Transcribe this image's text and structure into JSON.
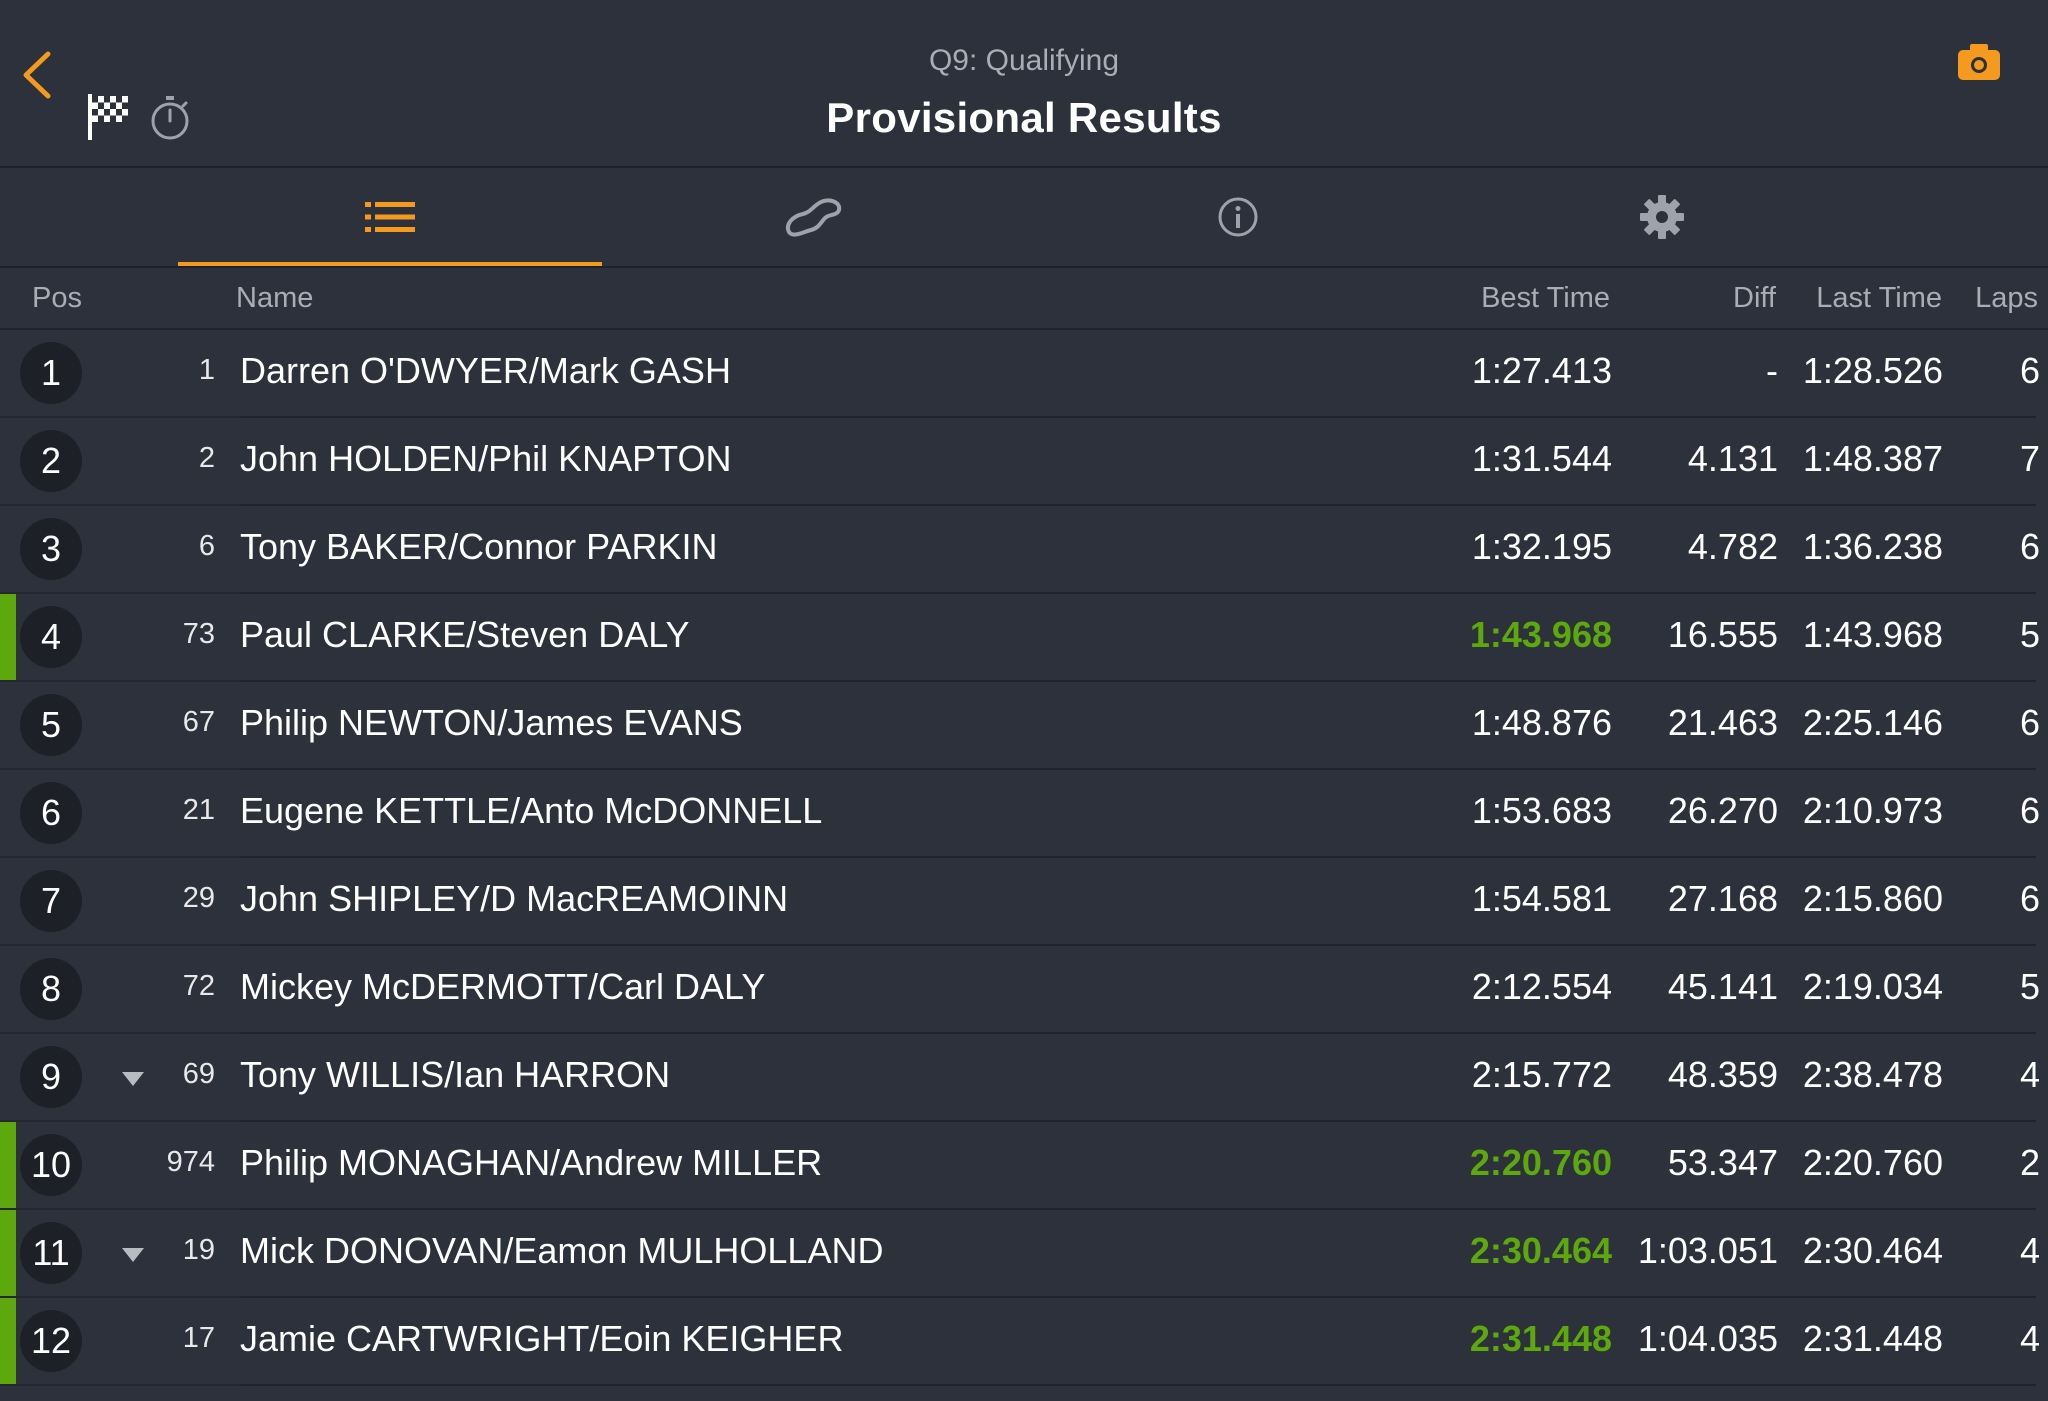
{
  "header": {
    "subtitle": "Q9: Qualifying",
    "title": "Provisional Results",
    "back_icon": "chevron-left-icon",
    "flag_icon": "checkered-flag-icon",
    "timer_icon": "stopwatch-icon",
    "camera_icon": "camera-icon",
    "accent_color": "#f39a1f"
  },
  "tabs": [
    {
      "icon": "list-icon",
      "active": true
    },
    {
      "icon": "track-map-icon",
      "active": false
    },
    {
      "icon": "info-icon",
      "active": false
    },
    {
      "icon": "gear-icon",
      "active": false
    }
  ],
  "columns": {
    "pos": "Pos",
    "name": "Name",
    "best": "Best Time",
    "diff": "Diff",
    "last": "Last Time",
    "laps": "Laps"
  },
  "highlight_color": "#5da80c",
  "rows": [
    {
      "pos": "1",
      "num": "1",
      "name": "Darren O'DWYER/Mark GASH",
      "best": "1:27.413",
      "diff": "-",
      "last": "1:28.526",
      "laps": "6",
      "highlight": false,
      "dropped": false
    },
    {
      "pos": "2",
      "num": "2",
      "name": "John HOLDEN/Phil KNAPTON",
      "best": "1:31.544",
      "diff": "4.131",
      "last": "1:48.387",
      "laps": "7",
      "highlight": false,
      "dropped": false
    },
    {
      "pos": "3",
      "num": "6",
      "name": "Tony BAKER/Connor PARKIN",
      "best": "1:32.195",
      "diff": "4.782",
      "last": "1:36.238",
      "laps": "6",
      "highlight": false,
      "dropped": false
    },
    {
      "pos": "4",
      "num": "73",
      "name": "Paul CLARKE/Steven DALY",
      "best": "1:43.968",
      "diff": "16.555",
      "last": "1:43.968",
      "laps": "5",
      "highlight": true,
      "dropped": false
    },
    {
      "pos": "5",
      "num": "67",
      "name": "Philip NEWTON/James EVANS",
      "best": "1:48.876",
      "diff": "21.463",
      "last": "2:25.146",
      "laps": "6",
      "highlight": false,
      "dropped": false
    },
    {
      "pos": "6",
      "num": "21",
      "name": "Eugene KETTLE/Anto McDONNELL",
      "best": "1:53.683",
      "diff": "26.270",
      "last": "2:10.973",
      "laps": "6",
      "highlight": false,
      "dropped": false
    },
    {
      "pos": "7",
      "num": "29",
      "name": "John SHIPLEY/D MacREAMOINN",
      "best": "1:54.581",
      "diff": "27.168",
      "last": "2:15.860",
      "laps": "6",
      "highlight": false,
      "dropped": false
    },
    {
      "pos": "8",
      "num": "72",
      "name": "Mickey McDERMOTT/Carl DALY",
      "best": "2:12.554",
      "diff": "45.141",
      "last": "2:19.034",
      "laps": "5",
      "highlight": false,
      "dropped": false
    },
    {
      "pos": "9",
      "num": "69",
      "name": "Tony WILLIS/Ian HARRON",
      "best": "2:15.772",
      "diff": "48.359",
      "last": "2:38.478",
      "laps": "4",
      "highlight": false,
      "dropped": true
    },
    {
      "pos": "10",
      "num": "974",
      "name": "Philip MONAGHAN/Andrew MILLER",
      "best": "2:20.760",
      "diff": "53.347",
      "last": "2:20.760",
      "laps": "2",
      "highlight": true,
      "dropped": false
    },
    {
      "pos": "11",
      "num": "19",
      "name": "Mick DONOVAN/Eamon MULHOLLAND",
      "best": "2:30.464",
      "diff": "1:03.051",
      "last": "2:30.464",
      "laps": "4",
      "highlight": true,
      "dropped": true
    },
    {
      "pos": "12",
      "num": "17",
      "name": "Jamie CARTWRIGHT/Eoin KEIGHER",
      "best": "2:31.448",
      "diff": "1:04.035",
      "last": "2:31.448",
      "laps": "4",
      "highlight": true,
      "dropped": false
    }
  ]
}
